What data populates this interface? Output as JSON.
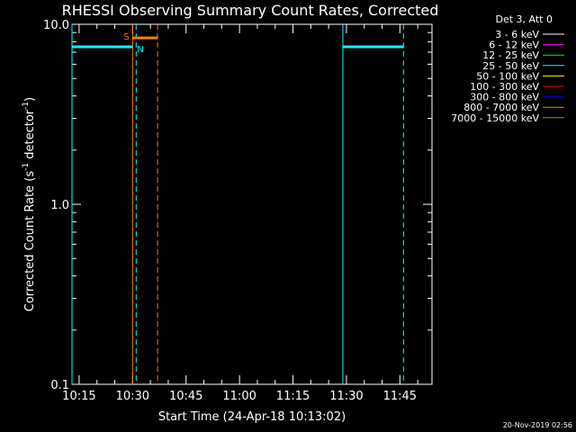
{
  "chart_data": {
    "type": "line",
    "title": "RHESSI Observing Summary Count Rates, Corrected",
    "xlabel": "Start Time (24-Apr-18 10:13:02)",
    "ylabel_main": "Corrected Count Rate (s",
    "ylabel_sup1": "-1",
    "ylabel_mid": " detector",
    "ylabel_sup2": "-1",
    "ylabel_end": ")",
    "yscale": "log",
    "ylim": [
      0.1,
      10.0
    ],
    "xlim": [
      "10:13",
      "11:54"
    ],
    "y_ticks": [
      "10.0",
      "1.0",
      "0.1"
    ],
    "x_ticks": [
      "10:15",
      "10:30",
      "10:45",
      "11:00",
      "11:15",
      "11:30",
      "11:45"
    ],
    "legend_title": "Det 3, Att 0",
    "legend_position": "top-right",
    "series": [
      {
        "name": "3 - 6 keV",
        "color": "#ffffff",
        "values": []
      },
      {
        "name": "6 - 12 keV",
        "color": "#ff00ff",
        "values": []
      },
      {
        "name": "12 - 25 keV",
        "color": "#00ff00",
        "values": []
      },
      {
        "name": "25 - 50 keV",
        "color": "#00ffff",
        "values": [
          {
            "x": "10:13",
            "y": 7.5
          },
          {
            "x": "10:30",
            "y": 7.5
          },
          {
            "x": "11:29",
            "y": 7.5
          },
          {
            "x": "11:46",
            "y": 7.5
          }
        ]
      },
      {
        "name": "50 - 100 keV",
        "color": "#ffff00",
        "values": []
      },
      {
        "name": "100 - 300 keV",
        "color": "#ff0000",
        "values": []
      },
      {
        "name": "300 - 800 keV",
        "color": "#0000ff",
        "values": []
      },
      {
        "name": "800 - 7000 keV",
        "color": "#ff8000",
        "values": []
      },
      {
        "name": "7000 - 15000 keV",
        "color": "#9a9a00",
        "values": []
      }
    ],
    "markers": [
      {
        "label": "S",
        "color": "#ff8000",
        "x_start": "10:30",
        "x_end": "10:37",
        "y": 8.4
      },
      {
        "label": "N",
        "color": "#00ffff",
        "x_start": "10:30",
        "x_end": "10:30",
        "y": 7.5
      }
    ],
    "vertical_lines": [
      {
        "x": "10:13",
        "style": "solid",
        "color": "#00ffff"
      },
      {
        "x": "10:30",
        "style": "solid",
        "color": "#ff8000"
      },
      {
        "x": "10:31",
        "style": "dashed",
        "color": "#00ffff"
      },
      {
        "x": "10:37",
        "style": "dashed",
        "color": "#ff8000"
      },
      {
        "x": "11:29",
        "style": "solid",
        "color": "#00ffff"
      },
      {
        "x": "11:46",
        "style": "dashed",
        "color": "#00ffff"
      }
    ],
    "footer_date": "20-Nov-2019 02:56"
  }
}
